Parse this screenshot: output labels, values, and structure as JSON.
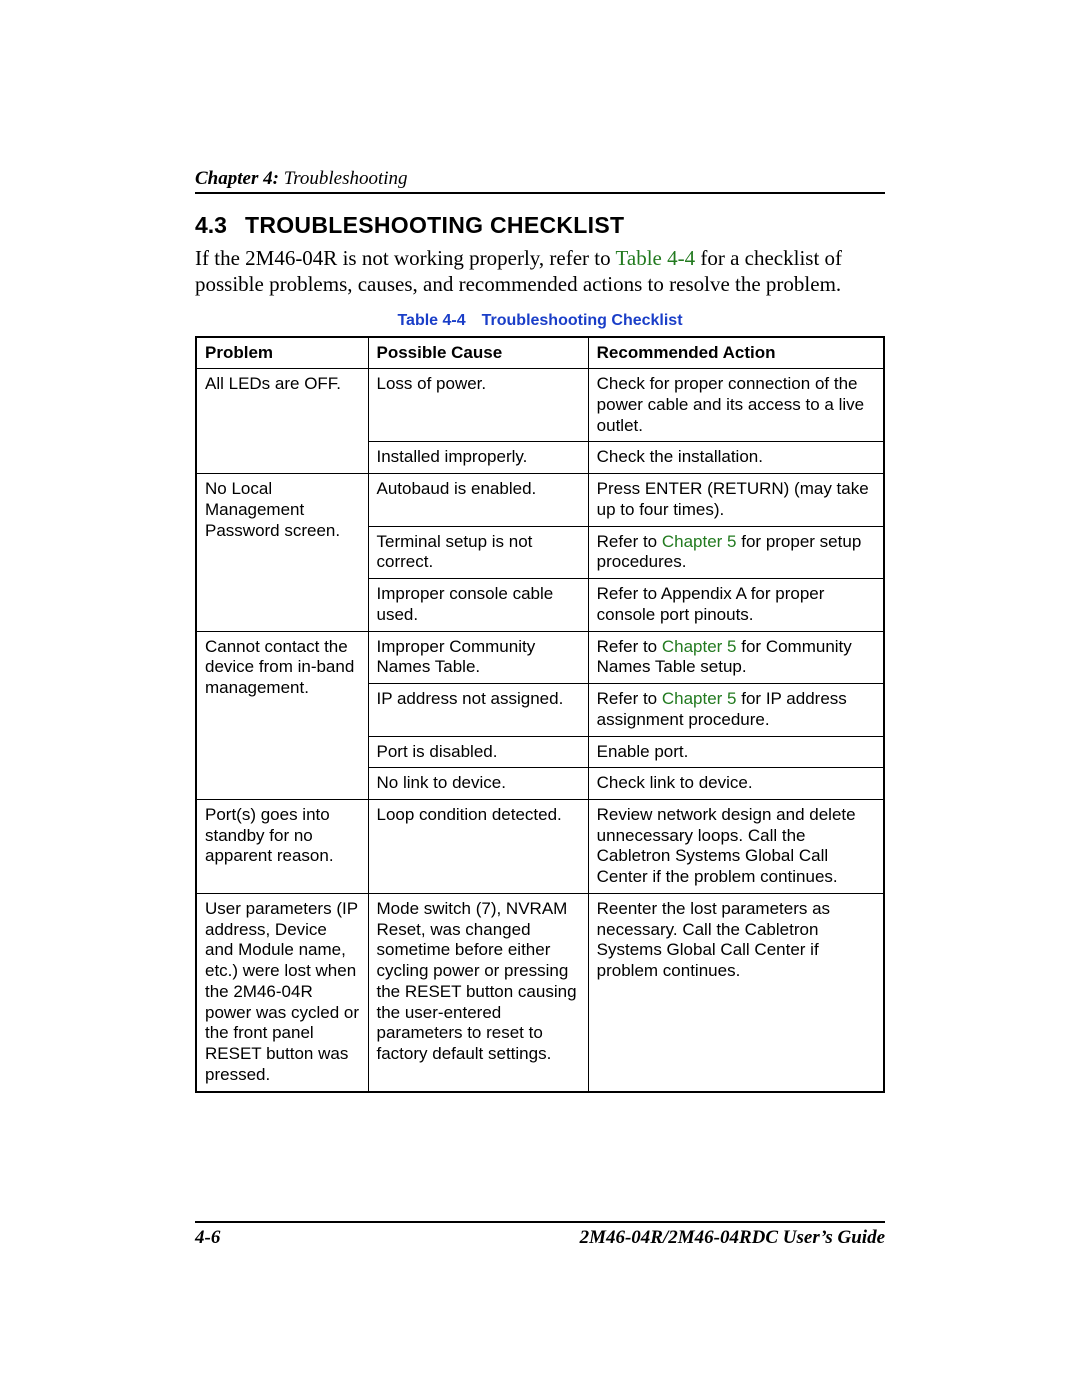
{
  "header": {
    "chapter_bold": "Chapter 4:",
    "chapter_light": " Troubleshooting"
  },
  "section": {
    "number": "4.3",
    "title": "TROUBLESHOOTING CHECKLIST"
  },
  "intro": {
    "pre": "If the 2M46-04R is not working properly, refer to ",
    "link": "Table 4-4",
    "post": " for a checklist of possible problems, causes, and recommended actions to resolve the problem."
  },
  "table": {
    "caption": "Table 4-4 Troubleshooting Checklist",
    "headers": {
      "c1": "Problem",
      "c2": "Possible Cause",
      "c3": "Recommended Action"
    },
    "rows": {
      "r1": {
        "problem": "All LEDs are OFF.",
        "cause": "Loss of power.",
        "action": "Check for proper connection of the power cable and its access to a live outlet."
      },
      "r2": {
        "cause": "Installed improperly.",
        "action": "Check the installation."
      },
      "r3": {
        "problem": "No Local Management Password screen.",
        "cause": "Autobaud is enabled.",
        "action": "Press ENTER (RETURN) (may take up to four times)."
      },
      "r4": {
        "cause": "Terminal setup is not correct.",
        "action_pre": "Refer to ",
        "action_link": "Chapter 5",
        "action_post": " for proper setup procedures."
      },
      "r5": {
        "cause": "Improper console cable used.",
        "action": "Refer to Appendix A for proper console port pinouts."
      },
      "r6": {
        "problem": "Cannot contact the device from in-band management.",
        "cause": "Improper Community Names Table.",
        "action_pre": "Refer to ",
        "action_link": "Chapter 5",
        "action_post": " for Community Names Table setup."
      },
      "r7": {
        "cause": "IP address not assigned.",
        "action_pre": "Refer to ",
        "action_link": "Chapter 5",
        "action_post": " for IP address assignment procedure."
      },
      "r8": {
        "cause": "Port is disabled.",
        "action": "Enable port."
      },
      "r9": {
        "cause": "No link to device.",
        "action": "Check link to device."
      },
      "r10": {
        "problem": "Port(s) goes into standby for no apparent reason.",
        "cause": "Loop condition detected.",
        "action": "Review network design and delete unnecessary loops. Call the Cabletron Systems Global Call Center if the problem continues."
      },
      "r11": {
        "problem": "User parameters (IP address, Device and Module name, etc.) were lost when the 2M46-04R power was cycled or the front panel RESET button was pressed.",
        "cause": "Mode switch (7), NVRAM Reset, was changed sometime before either cycling power or pressing the RESET button causing the user-entered parameters to reset to factory default settings.",
        "action": "Reenter the lost parameters as necessary. Call the Cabletron Systems Global Call Center if problem continues."
      }
    }
  },
  "footer": {
    "page": "4-6",
    "guide": "2M46-04R/2M46-04RDC User’s Guide"
  },
  "colors": {
    "link_green": "#227a1f",
    "caption_blue": "#1a3ec8"
  }
}
